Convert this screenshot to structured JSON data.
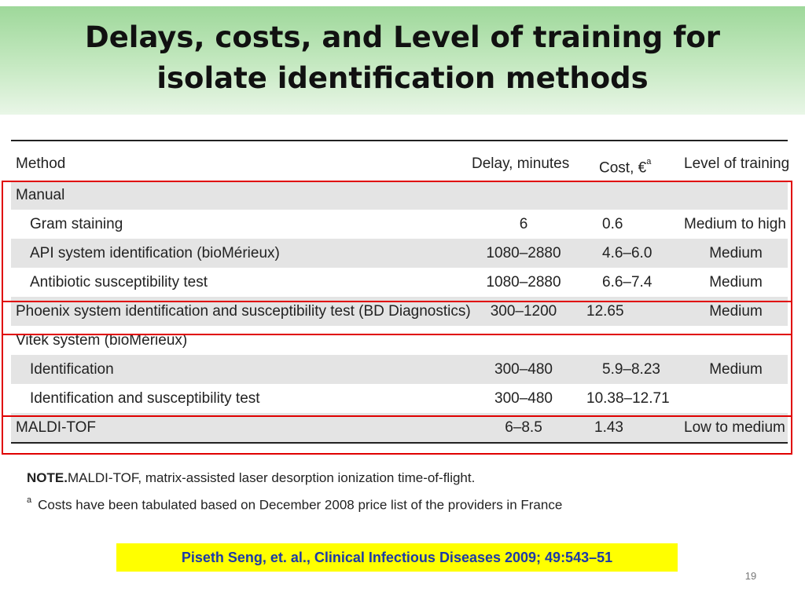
{
  "slide": {
    "title_line1": "Delays, costs, and Level of training for",
    "title_line2": "isolate identification methods",
    "page_number": "19"
  },
  "table": {
    "headers": {
      "method": "Method",
      "delay": "Delay, minutes",
      "cost": "Cost, €",
      "cost_sup": "a",
      "level": "Level of training"
    },
    "rows": [
      {
        "method": "Manual",
        "delay": "",
        "cost": "",
        "level": ""
      },
      {
        "method": "Gram staining",
        "delay": "6",
        "cost": "0.6",
        "level": "Medium to high"
      },
      {
        "method": "API system identification (bioMérieux)",
        "delay": "1080–2880",
        "cost": "4.6–6.0",
        "level": "Medium"
      },
      {
        "method": "Antibiotic susceptibility test",
        "delay": "1080–2880",
        "cost": "6.6–7.4",
        "level": "Medium"
      },
      {
        "method": "Phoenix system identification and susceptibility test (BD Diagnostics)",
        "delay": "300–1200",
        "cost": "12.65",
        "level": "Medium"
      },
      {
        "method": "Vitek system (bioMérieux)",
        "delay": "",
        "cost": "",
        "level": ""
      },
      {
        "method": "Identification",
        "delay": "300–480",
        "cost": "5.9–8.23",
        "level": "Medium"
      },
      {
        "method": "Identification and susceptibility test",
        "delay": "300–480",
        "cost": "10.38–12.71",
        "level": ""
      },
      {
        "method": "MALDI-TOF",
        "delay": "6–8.5",
        "cost": "1.43",
        "level": "Low to medium"
      }
    ]
  },
  "notes": {
    "note_label": "NOTE.",
    "note_text": "MALDI-TOF, matrix-assisted laser desorption ionization time-of-flight.",
    "footnote_marker": "a",
    "footnote_text": "Costs have been tabulated based on December 2008 price list of the providers in France"
  },
  "citation": "Piseth Seng, et. al., Clinical Infectious Diseases 2009; 49:543–51",
  "colors": {
    "highlight_box": "#e00000",
    "citation_bg": "#ffff00",
    "citation_text": "#1c3aa8",
    "header_green": "#9ed89a"
  }
}
